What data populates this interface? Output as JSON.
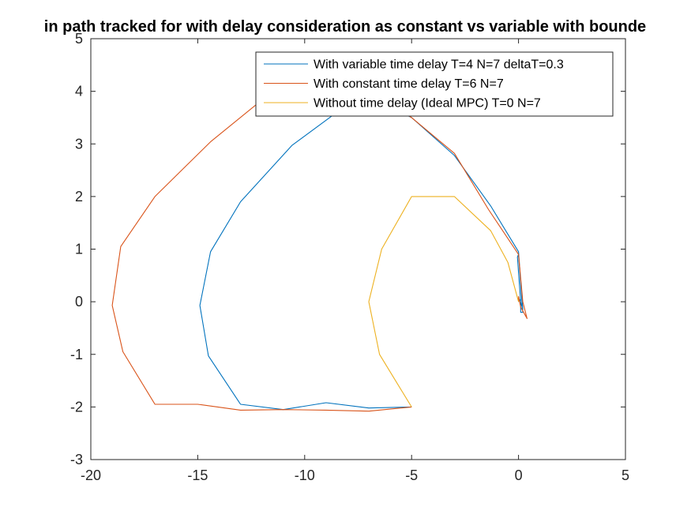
{
  "chart_data": {
    "type": "line",
    "title": "in path tracked for with delay consideration as constant vs variable with bounde",
    "xlabel": "",
    "ylabel": "",
    "xlim": [
      -20,
      5
    ],
    "ylim": [
      -3,
      5
    ],
    "xticks": [
      "-20",
      "-15",
      "-10",
      "-5",
      "0",
      "5"
    ],
    "yticks": [
      "-3",
      "-2",
      "-1",
      "0",
      "1",
      "2",
      "3",
      "4",
      "5"
    ],
    "xtick_values": [
      -20,
      -15,
      -10,
      -5,
      0,
      5
    ],
    "ytick_values": [
      -3,
      -2,
      -1,
      0,
      1,
      2,
      3,
      4,
      5
    ],
    "grid": false,
    "legend_position": "top-right",
    "series": [
      {
        "name": "With variable time delay T=4 N=7 deltaT=0.3",
        "color": "#0072BD",
        "x": [
          0.0,
          0.1,
          0.1,
          0.2,
          0.0,
          -0.05,
          0.1,
          0.2,
          0.0,
          -1.3,
          -3.0,
          -5.0,
          -7.0,
          -8.5,
          -10.6,
          -13.0,
          -14.4,
          -14.9,
          -14.5,
          -13.0,
          -11.0,
          -9.0,
          -7.0,
          -5.0
        ],
        "y": [
          0.0,
          0.05,
          -0.2,
          -0.2,
          0.9,
          0.85,
          0.0,
          -0.15,
          0.95,
          1.82,
          2.78,
          3.5,
          3.9,
          3.6,
          2.97,
          1.9,
          0.95,
          -0.07,
          -1.03,
          -1.95,
          -2.05,
          -1.92,
          -2.02,
          -2.0
        ]
      },
      {
        "name": "With constant time delay T=6 N=7",
        "color": "#D95319",
        "x": [
          0.0,
          0.0,
          0.1,
          0.4,
          0.2,
          0.0,
          -1.4,
          -3.0,
          -5.0,
          -7.0,
          -9.0,
          -11.5,
          -14.4,
          -17.0,
          -18.6,
          -19.0,
          -18.5,
          -17.0,
          -15.0,
          -13.0,
          -11.0,
          -9.0,
          -7.0,
          -5.0
        ],
        "y": [
          0.0,
          0.1,
          -0.1,
          -0.32,
          0.0,
          0.9,
          1.75,
          2.82,
          3.5,
          4.0,
          4.3,
          4.0,
          3.04,
          2.0,
          1.05,
          -0.07,
          -0.95,
          -1.95,
          -1.95,
          -2.06,
          -2.05,
          -2.06,
          -2.08,
          -2.0
        ]
      },
      {
        "name": "Without time delay (Ideal MPC) T=0 N=7",
        "color": "#EDB120",
        "x": [
          0.0,
          -0.1,
          -0.5,
          -1.3,
          -3.0,
          -5.0,
          -6.4,
          -7.0,
          -6.5,
          -5.0
        ],
        "y": [
          0.0,
          0.15,
          0.75,
          1.35,
          2.0,
          2.0,
          1.0,
          0.0,
          -1.0,
          -2.0
        ]
      }
    ]
  }
}
